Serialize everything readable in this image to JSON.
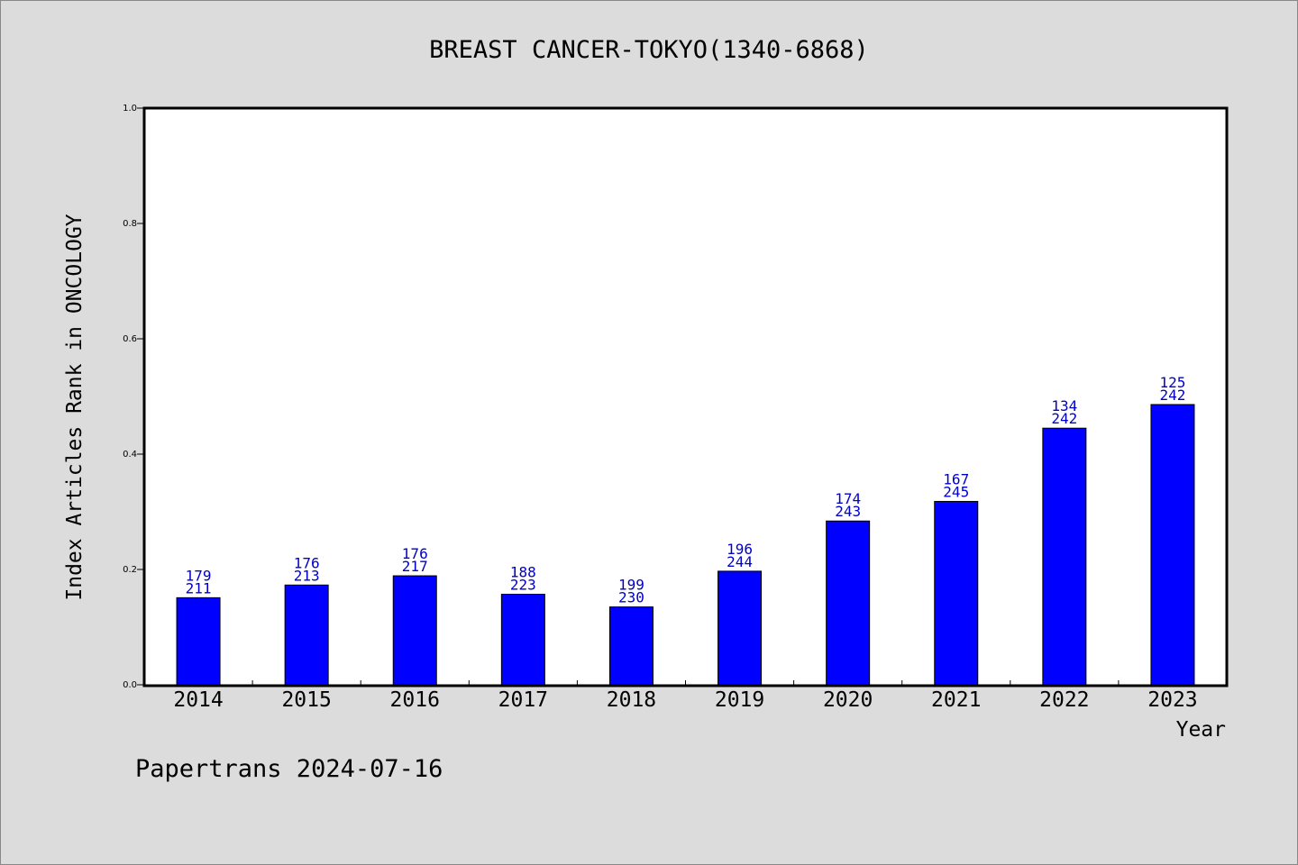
{
  "chart_data": {
    "type": "bar",
    "title": "BREAST CANCER-TOKYO(1340-6868)",
    "xlabel": "Year",
    "ylabel": "Index Articles Rank in ONCOLOGY",
    "ylim": [
      0.0,
      1.0
    ],
    "yticks": [
      "0.0",
      "0.2",
      "0.4",
      "0.6",
      "0.8",
      "1.0"
    ],
    "categories": [
      "2014",
      "2015",
      "2016",
      "2017",
      "2018",
      "2019",
      "2020",
      "2021",
      "2022",
      "2023"
    ],
    "values": [
      0.151,
      0.173,
      0.189,
      0.157,
      0.135,
      0.197,
      0.284,
      0.318,
      0.445,
      0.486
    ],
    "labels_top": [
      "179",
      "176",
      "176",
      "188",
      "199",
      "196",
      "174",
      "167",
      "134",
      "125"
    ],
    "labels_bottom": [
      "211",
      "213",
      "217",
      "223",
      "230",
      "244",
      "243",
      "245",
      "242",
      "242"
    ],
    "grid": false,
    "bar_color": "#0000ff",
    "label_color": "#0000cc"
  },
  "footer": "Papertrans 2024-07-16"
}
